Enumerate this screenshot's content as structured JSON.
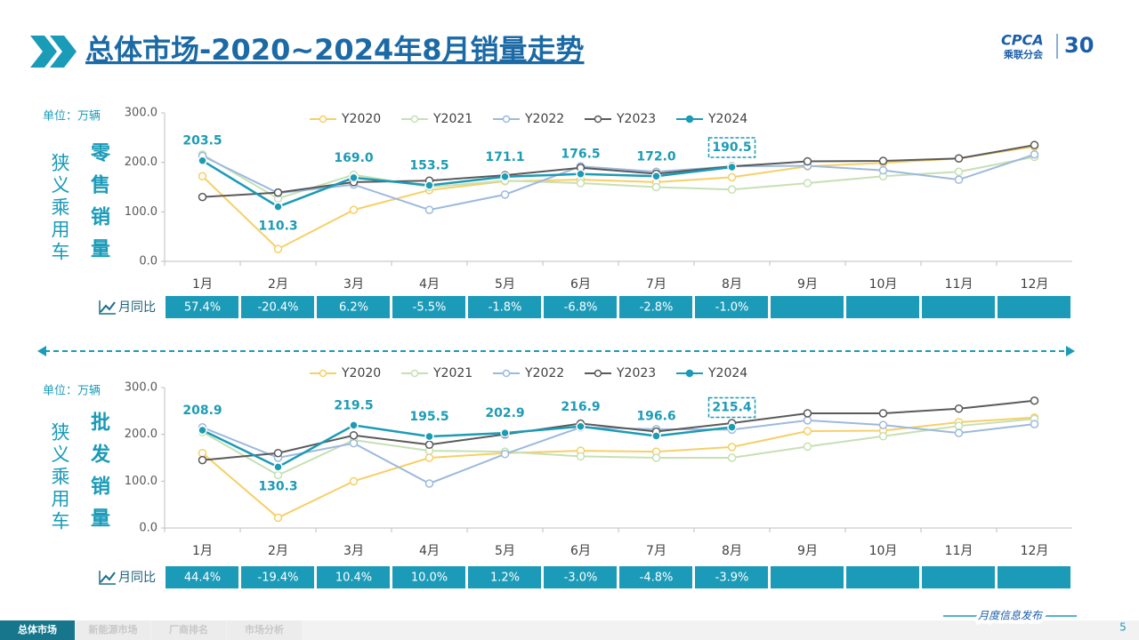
{
  "header": {
    "title": "总体市场-2020~2024年8月销量走势",
    "logo": "CPCA",
    "logo_sub": "乘联分会",
    "anniversary": "30"
  },
  "chart_data": [
    {
      "type": "line",
      "unit": "单位：万辆",
      "side_label": "狭义乘用车",
      "metric_label": "零售销量",
      "categories": [
        "1月",
        "2月",
        "3月",
        "4月",
        "5月",
        "6月",
        "7月",
        "8月",
        "9月",
        "10月",
        "11月",
        "12月"
      ],
      "ylim": [
        0,
        300
      ],
      "yticks": [
        {
          "value": 0,
          "label": "0.0"
        },
        {
          "value": 100,
          "label": "100.0"
        },
        {
          "value": 200,
          "label": "200.0"
        },
        {
          "value": 300,
          "label": "300.0"
        }
      ],
      "highlight_index": 7,
      "series": [
        {
          "name": "Y2020",
          "color": "#f6cf66",
          "values": [
            172,
            25,
            104,
            144,
            162,
            165,
            160,
            170,
            192,
            199,
            208,
            232
          ]
        },
        {
          "name": "Y2021",
          "color": "#c6e0b4",
          "values": [
            216,
            127,
            175,
            150,
            163,
            158,
            150,
            145,
            158,
            172,
            181,
            211
          ]
        },
        {
          "name": "Y2022",
          "color": "#9db9dd",
          "values": [
            213,
            138,
            155,
            104,
            135,
            192,
            181,
            192,
            193,
            184,
            165,
            216
          ]
        },
        {
          "name": "Y2023",
          "color": "#5a5a5a",
          "values": [
            130,
            139,
            160,
            163,
            174,
            189,
            177,
            192,
            202,
            203,
            208,
            235
          ]
        },
        {
          "name": "Y2024",
          "color": "#1c9bb5",
          "values": [
            203.5,
            110.3,
            169.0,
            153.5,
            171.1,
            176.5,
            172.0,
            190.5,
            null,
            null,
            null,
            null
          ],
          "value_labels": [
            "203.5",
            "110.3",
            "169.0",
            "153.5",
            "171.1",
            "176.5",
            "172.0",
            "190.5",
            null,
            null,
            null,
            null
          ]
        }
      ],
      "yoy_label": "月同比",
      "yoy": [
        "57.4%",
        "-20.4%",
        "6.2%",
        "-5.5%",
        "-1.8%",
        "-6.8%",
        "-2.8%",
        "-1.0%"
      ]
    },
    {
      "type": "line",
      "unit": "单位：万辆",
      "side_label": "狭义乘用车",
      "metric_label": "批发销量",
      "categories": [
        "1月",
        "2月",
        "3月",
        "4月",
        "5月",
        "6月",
        "7月",
        "8月",
        "9月",
        "10月",
        "11月",
        "12月"
      ],
      "ylim": [
        0,
        300
      ],
      "yticks": [
        {
          "value": 0,
          "label": "0.0"
        },
        {
          "value": 100,
          "label": "100.0"
        },
        {
          "value": 200,
          "label": "200.0"
        },
        {
          "value": 300,
          "label": "300.0"
        }
      ],
      "highlight_index": 7,
      "series": [
        {
          "name": "Y2020",
          "color": "#f6cf66",
          "values": [
            160,
            22,
            100,
            150,
            160,
            165,
            163,
            173,
            207,
            208,
            226,
            236
          ]
        },
        {
          "name": "Y2021",
          "color": "#c6e0b4",
          "values": [
            205,
            113,
            188,
            165,
            163,
            153,
            150,
            150,
            174,
            196,
            218,
            233
          ]
        },
        {
          "name": "Y2022",
          "color": "#9db9dd",
          "values": [
            215,
            150,
            181,
            95,
            158,
            215,
            211,
            210,
            230,
            220,
            203,
            222
          ]
        },
        {
          "name": "Y2023",
          "color": "#5a5a5a",
          "values": [
            145,
            160,
            198,
            178,
            200,
            223,
            206,
            224,
            245,
            245,
            255,
            272
          ]
        },
        {
          "name": "Y2024",
          "color": "#1c9bb5",
          "values": [
            208.9,
            130.3,
            219.5,
            195.5,
            202.9,
            216.9,
            196.6,
            215.4,
            null,
            null,
            null,
            null
          ],
          "value_labels": [
            "208.9",
            "130.3",
            "219.5",
            "195.5",
            "202.9",
            "216.9",
            "196.6",
            "215.4",
            null,
            null,
            null,
            null
          ]
        }
      ],
      "yoy_label": "月同比",
      "yoy": [
        "44.4%",
        "-19.4%",
        "10.4%",
        "10.0%",
        "1.2%",
        "-3.0%",
        "-4.8%",
        "-3.9%"
      ]
    }
  ],
  "footer": {
    "tabs": [
      "总体市场",
      "新能源市场",
      "厂商排名",
      "市场分析"
    ],
    "slogan": "月度信息发布",
    "page": "5"
  }
}
